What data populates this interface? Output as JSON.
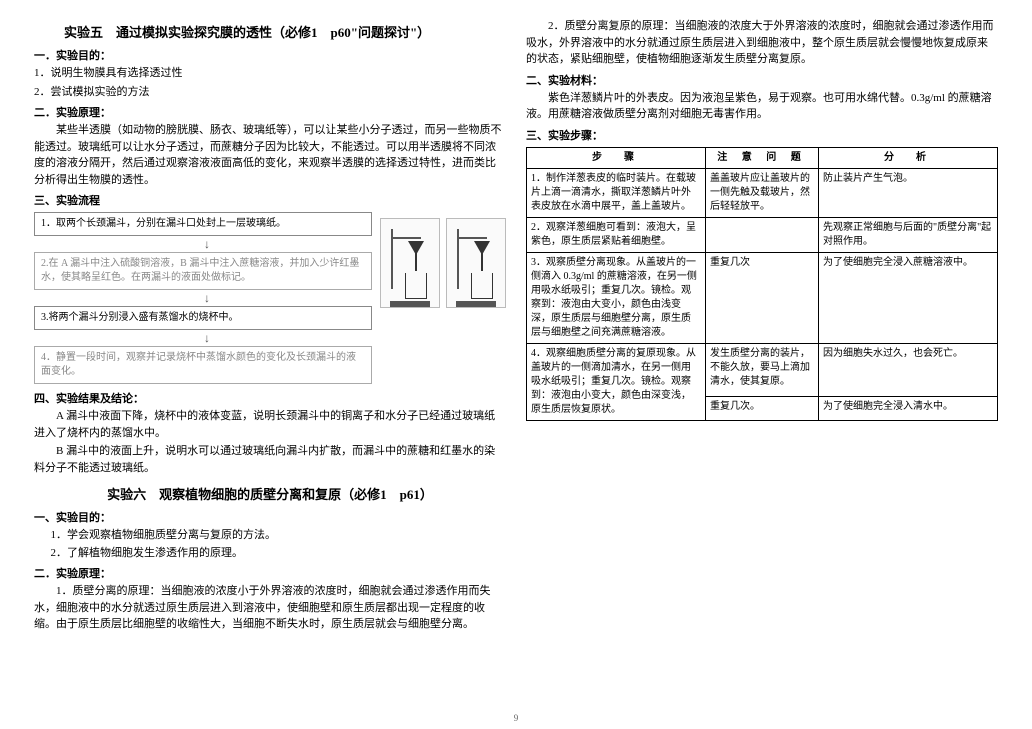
{
  "left": {
    "title5": "实验五　通过模拟实验探究膜的透性（必修1　p60\"问题探讨\"）",
    "sec1": "一．实验目的：",
    "aim1": "1．说明生物膜具有选择透过性",
    "aim2": "2．尝试模拟实验的方法",
    "sec2": "二．实验原理：",
    "para1": "某些半透膜（如动物的膀胱膜、肠衣、玻璃纸等），可以让某些小分子透过，而另一些物质不能透过。玻璃纸可以让水分子透过，而蔗糖分子因为比较大，不能透过。可以用半透膜将不同浓度的溶液分隔开，然后通过观察溶液液面高低的变化，来观察半透膜的选择透过特性，进而类比分析得出生物膜的透性。",
    "sec3": "三、实验流程",
    "box1": "1．取两个长颈漏斗，分别在漏斗口处封上一层玻璃纸。",
    "box2": "2.在 A 漏斗中注入硫酸铜溶液，B 漏斗中注入蔗糖溶液，并加入少许红墨水，使其略呈红色。在两漏斗的液面处做标记。",
    "box3": "3.将两个漏斗分别浸入盛有蒸馏水的烧杯中。",
    "box4": "4．静置一段时间，观察并记录烧杯中蒸馏水颜色的变化及长颈漏斗的液面变化。",
    "sec4": "四、实验结果及结论：",
    "resA": "A 漏斗中液面下降，烧杯中的液体变蓝，说明长颈漏斗中的铜离子和水分子已经通过玻璃纸进入了烧杯内的蒸馏水中。",
    "resB": "B 漏斗中的液面上升，说明水可以通过玻璃纸向漏斗内扩散，而漏斗中的蔗糖和红墨水的染料分子不能透过玻璃纸。",
    "title6": "实验六　观察植物细胞的质壁分离和复原（必修1　p61）",
    "sec5": "一、实验目的：",
    "aim61": "1．学会观察植物细胞质壁分离与复原的方法。",
    "aim62": "2．了解植物细胞发生渗透作用的原理。",
    "sec6": "二．实验原理：",
    "para61": "1．质壁分离的原理：当细胞液的浓度小于外界溶液的浓度时，细胞就会通过渗透作用而失水，细胞液中的水分就透过原生质层进入到溶液中，使细胞壁和原生质层都出现一定程度的收缩。由于原生质层比细胞壁的收缩性大，当细胞不断失水时，原生质层就会与细胞壁分离。"
  },
  "right": {
    "para62": "2．质壁分离复原的原理：当细胞液的浓度大于外界溶液的浓度时，细胞就会通过渗透作用而吸水，外界溶液中的水分就通过原生质层进入到细胞液中，整个原生质层就会慢慢地恢复成原来的状态，紧贴细胞壁，使植物细胞逐渐发生质壁分离复原。",
    "sec7": "二、实验材料：",
    "mat": "紫色洋葱鳞片叶的外表皮。因为液泡呈紫色，易于观察。也可用水绵代替。0.3g/ml 的蔗糖溶液。用蔗糖溶液做质壁分离剂对细胞无毒害作用。",
    "sec8": "三、实验步骤：",
    "th1": "步　骤",
    "th2": "注 意 问 题",
    "th3": "分　析",
    "r1c1": "1．制作洋葱表皮的临时装片。在载玻片上滴一滴清水，撕取洋葱鳞片叶外表皮放在水滴中展平，盖上盖玻片。",
    "r1c2": "盖盖玻片应让盖玻片的一侧先触及载玻片，然后轻轻放平。",
    "r1c3": "防止装片产生气泡。",
    "r2c1": "2．观察洋葱细胞可看到：液泡大，呈紫色，原生质层紧贴着细胞壁。",
    "r2c2": "",
    "r2c3": "先观察正常细胞与后面的\"质壁分离\"起对照作用。",
    "r3c1": "3．观察质壁分离现象。从盖玻片的一侧滴入 0.3g/ml 的蔗糖溶液，在另一侧用吸水纸吸引；重复几次。镜检。观察到：液泡由大变小，颜色由浅变深，原生质层与细胞壁分离，原生质层与细胞壁之间充满蔗糖溶液。",
    "r3c2": "重复几次",
    "r3c3": "为了使细胞完全浸入蔗糖溶液中。",
    "r4c1": "4．观察细胞质壁分离的复原现象。从盖玻片的一侧滴加清水，在另一侧用吸水纸吸引；重复几次。镜检。观察到：液泡由小变大，颜色由深变浅，原生质层恢复原状。",
    "r4c2a": "发生质壁分离的装片，不能久放，要马上滴加清水，使其复原。",
    "r4c3a": "因为细胞失水过久，也会死亡。",
    "r4c2b": "重复几次。",
    "r4c3b": "为了使细胞完全浸入清水中。"
  },
  "pagenum": "9"
}
